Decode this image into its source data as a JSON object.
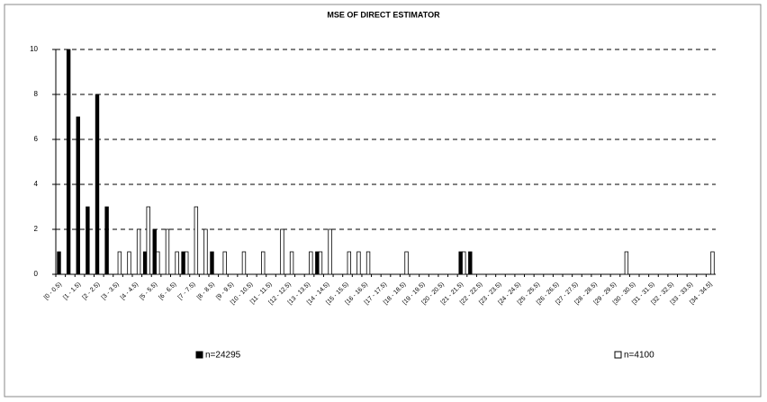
{
  "chart_data": {
    "type": "bar",
    "title": "MSE OF DIRECT ESTIMATOR",
    "categories": [
      "[0 - 0.5)",
      null,
      "[1 - 1.5)",
      null,
      "[2 - 2.5)",
      null,
      "[3 - 3.5)",
      null,
      "[4 - 4.5)",
      null,
      "[5 - 5.5)",
      null,
      "[6 - 6.5)",
      null,
      "[7 - 7.5)",
      null,
      "[8 - 8.5)",
      null,
      "[9 - 9.5)",
      null,
      "[10 - 10.5)",
      null,
      "[11 - 11.5)",
      null,
      "[12 - 12.5)",
      null,
      "[13 - 13.5)",
      null,
      "[14 - 14.5)",
      null,
      "[15 - 15.5)",
      null,
      "[16 - 16.5)",
      null,
      "[17 - 17.5)",
      null,
      "[18 - 18.5)",
      null,
      "[19 - 19.5)",
      null,
      "[20 - 20.5)",
      null,
      "[21 - 21.5)",
      null,
      "[22 - 22.5)",
      null,
      "[23 - 23.5)",
      null,
      "[24 - 24.5)",
      null,
      "[25 - 25.5)",
      null,
      "[26 - 26.5)",
      null,
      "[27 - 27.5)",
      null,
      "[28 - 28.5)",
      null,
      "[29 - 29.5)",
      null,
      "[30 - 30.5)",
      null,
      "[31 - 31.5)",
      null,
      "[32 - 32.5)",
      null,
      "[33 - 33.5)",
      null,
      "[34 - 34.5]"
    ],
    "series": [
      {
        "name": "n=24295",
        "color": "#000000",
        "values": [
          1,
          10,
          7,
          3,
          8,
          3,
          0,
          0,
          0,
          1,
          2,
          0,
          0,
          1,
          0,
          0,
          1,
          0,
          0,
          0,
          0,
          0,
          0,
          0,
          0,
          0,
          0,
          1,
          0,
          0,
          0,
          0,
          0,
          0,
          0,
          0,
          0,
          0,
          0,
          0,
          0,
          0,
          1,
          1,
          0,
          0,
          0,
          0,
          0,
          0,
          0,
          0,
          0,
          0,
          0,
          0,
          0,
          0,
          0,
          0,
          0,
          0,
          0,
          0,
          0,
          0,
          0,
          0,
          0
        ]
      },
      {
        "name": "n=4100",
        "color": "#ffffff",
        "values": [
          0,
          0,
          0,
          0,
          0,
          0,
          1,
          1,
          2,
          3,
          1,
          2,
          1,
          1,
          3,
          2,
          0,
          1,
          0,
          1,
          0,
          1,
          0,
          2,
          1,
          0,
          1,
          1,
          2,
          0,
          1,
          1,
          1,
          0,
          0,
          0,
          1,
          0,
          0,
          0,
          0,
          0,
          1,
          0,
          0,
          0,
          0,
          0,
          0,
          0,
          0,
          0,
          0,
          0,
          0,
          0,
          0,
          0,
          0,
          1,
          0,
          0,
          0,
          0,
          0,
          0,
          0,
          0,
          1
        ]
      }
    ],
    "ylim": [
      0,
      10
    ],
    "yticks": [
      0,
      2,
      4,
      6,
      8,
      10
    ],
    "grid": true
  }
}
